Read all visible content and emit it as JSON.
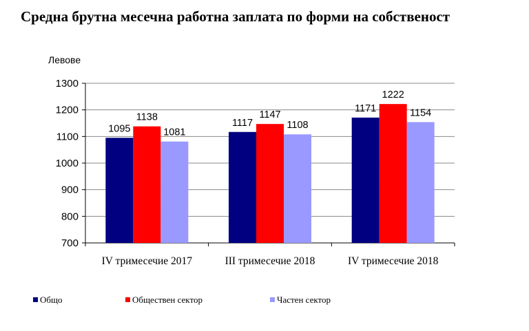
{
  "chart_data": {
    "type": "bar",
    "title": "Средна брутна месечна работна заплата по форми на собственост",
    "ylabel": "Левове",
    "xlabel": "",
    "ylim": [
      700,
      1300
    ],
    "yticks": [
      700,
      800,
      900,
      1000,
      1100,
      1200,
      1300
    ],
    "grid": true,
    "legend_position": "bottom",
    "categories": [
      "IV тримесечие 2017",
      "III тримесечие 2018",
      "IV тримесечие 2018"
    ],
    "series": [
      {
        "name": "Общо",
        "color": "#000080",
        "values": [
          1095,
          1117,
          1171
        ]
      },
      {
        "name": "Обществен сектор",
        "color": "#ff0000",
        "values": [
          1138,
          1147,
          1222
        ]
      },
      {
        "name": "Частен сектор",
        "color": "#9999ff",
        "values": [
          1081,
          1108,
          1154
        ]
      }
    ]
  }
}
